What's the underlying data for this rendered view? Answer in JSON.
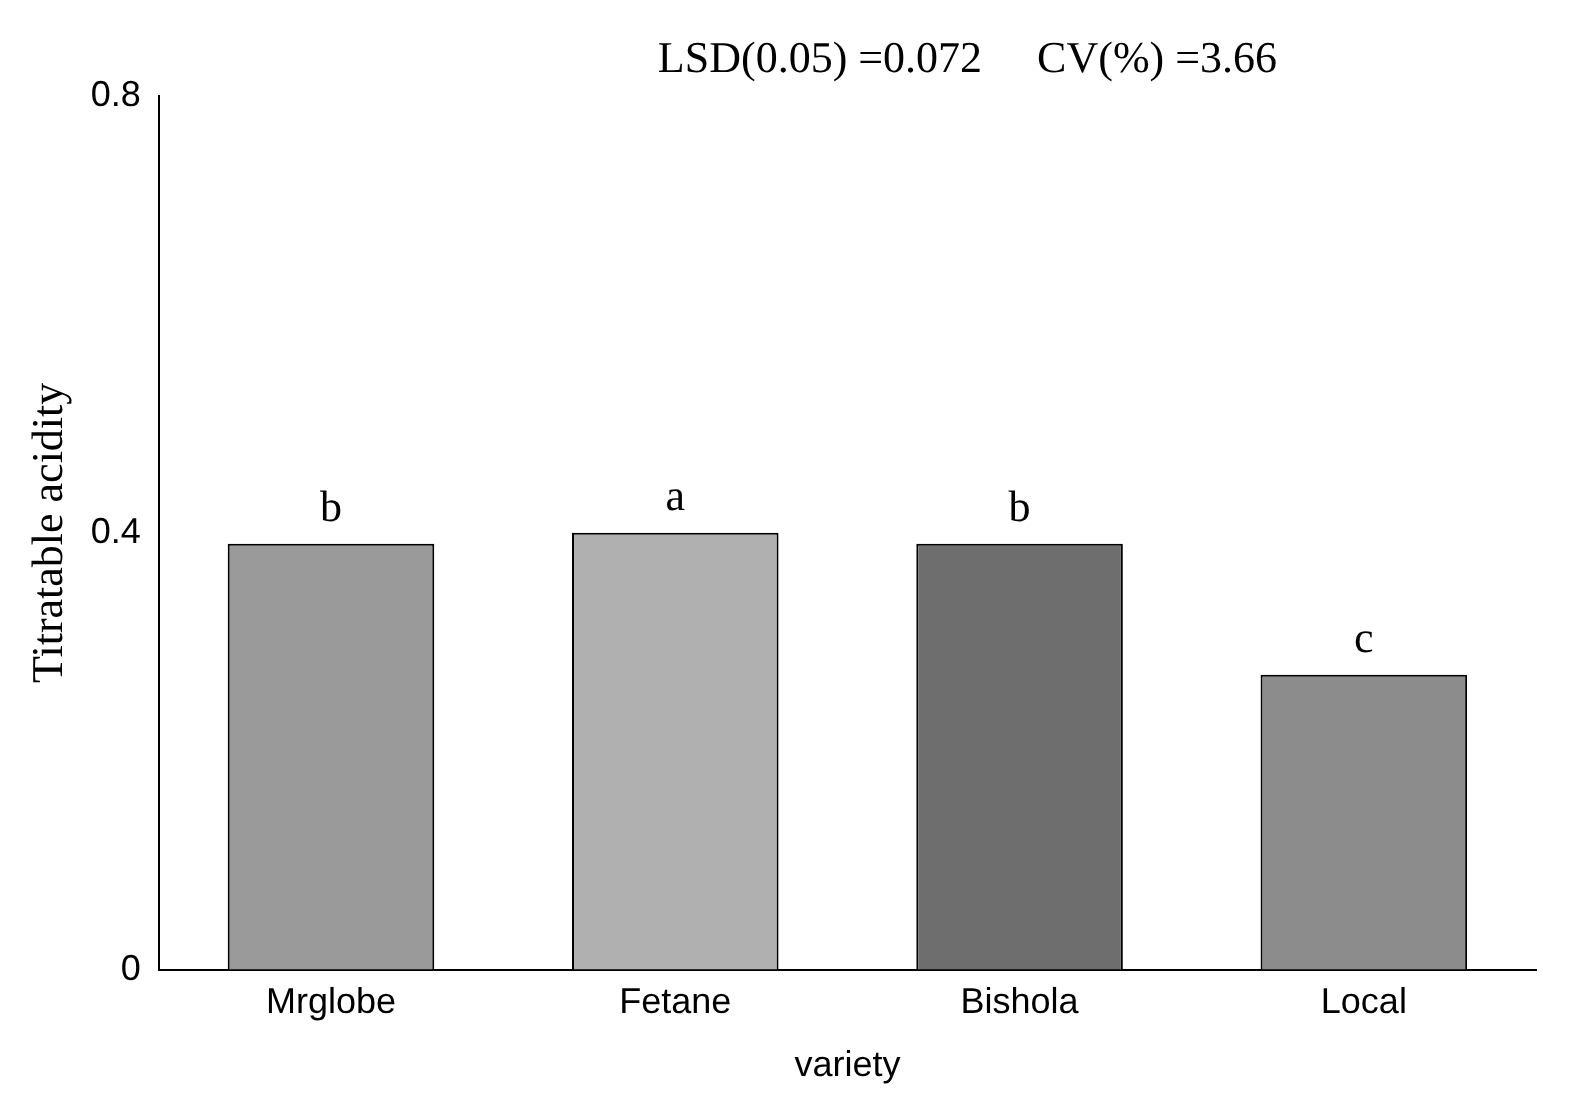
{
  "chart_data": {
    "type": "bar",
    "xlabel": "variety",
    "ylabel": "Titratable acidity",
    "categories": [
      "Mrglobe",
      "Fetane",
      "Bishola",
      "Local"
    ],
    "values": [
      0.39,
      0.4,
      0.39,
      0.27
    ],
    "colors": [
      "#9a9a9a",
      "#b0b0b0",
      "#6e6e6e",
      "#8c8c8c"
    ],
    "ylim": [
      0,
      0.8
    ],
    "yticks": [
      0,
      0.4,
      0.8
    ],
    "grid": false,
    "annotations": [
      "LSD(0.05) =0.072     CV(%) =3.66",
      {
        "text": "b",
        "x": "Mrglobe",
        "y": 0.39
      },
      {
        "text": "a",
        "x": "Fetane",
        "y": 0.4
      },
      {
        "text": "b",
        "x": "Bishola",
        "y": 0.39
      },
      {
        "text": "c",
        "x": "Local",
        "y": 0.27
      }
    ]
  }
}
